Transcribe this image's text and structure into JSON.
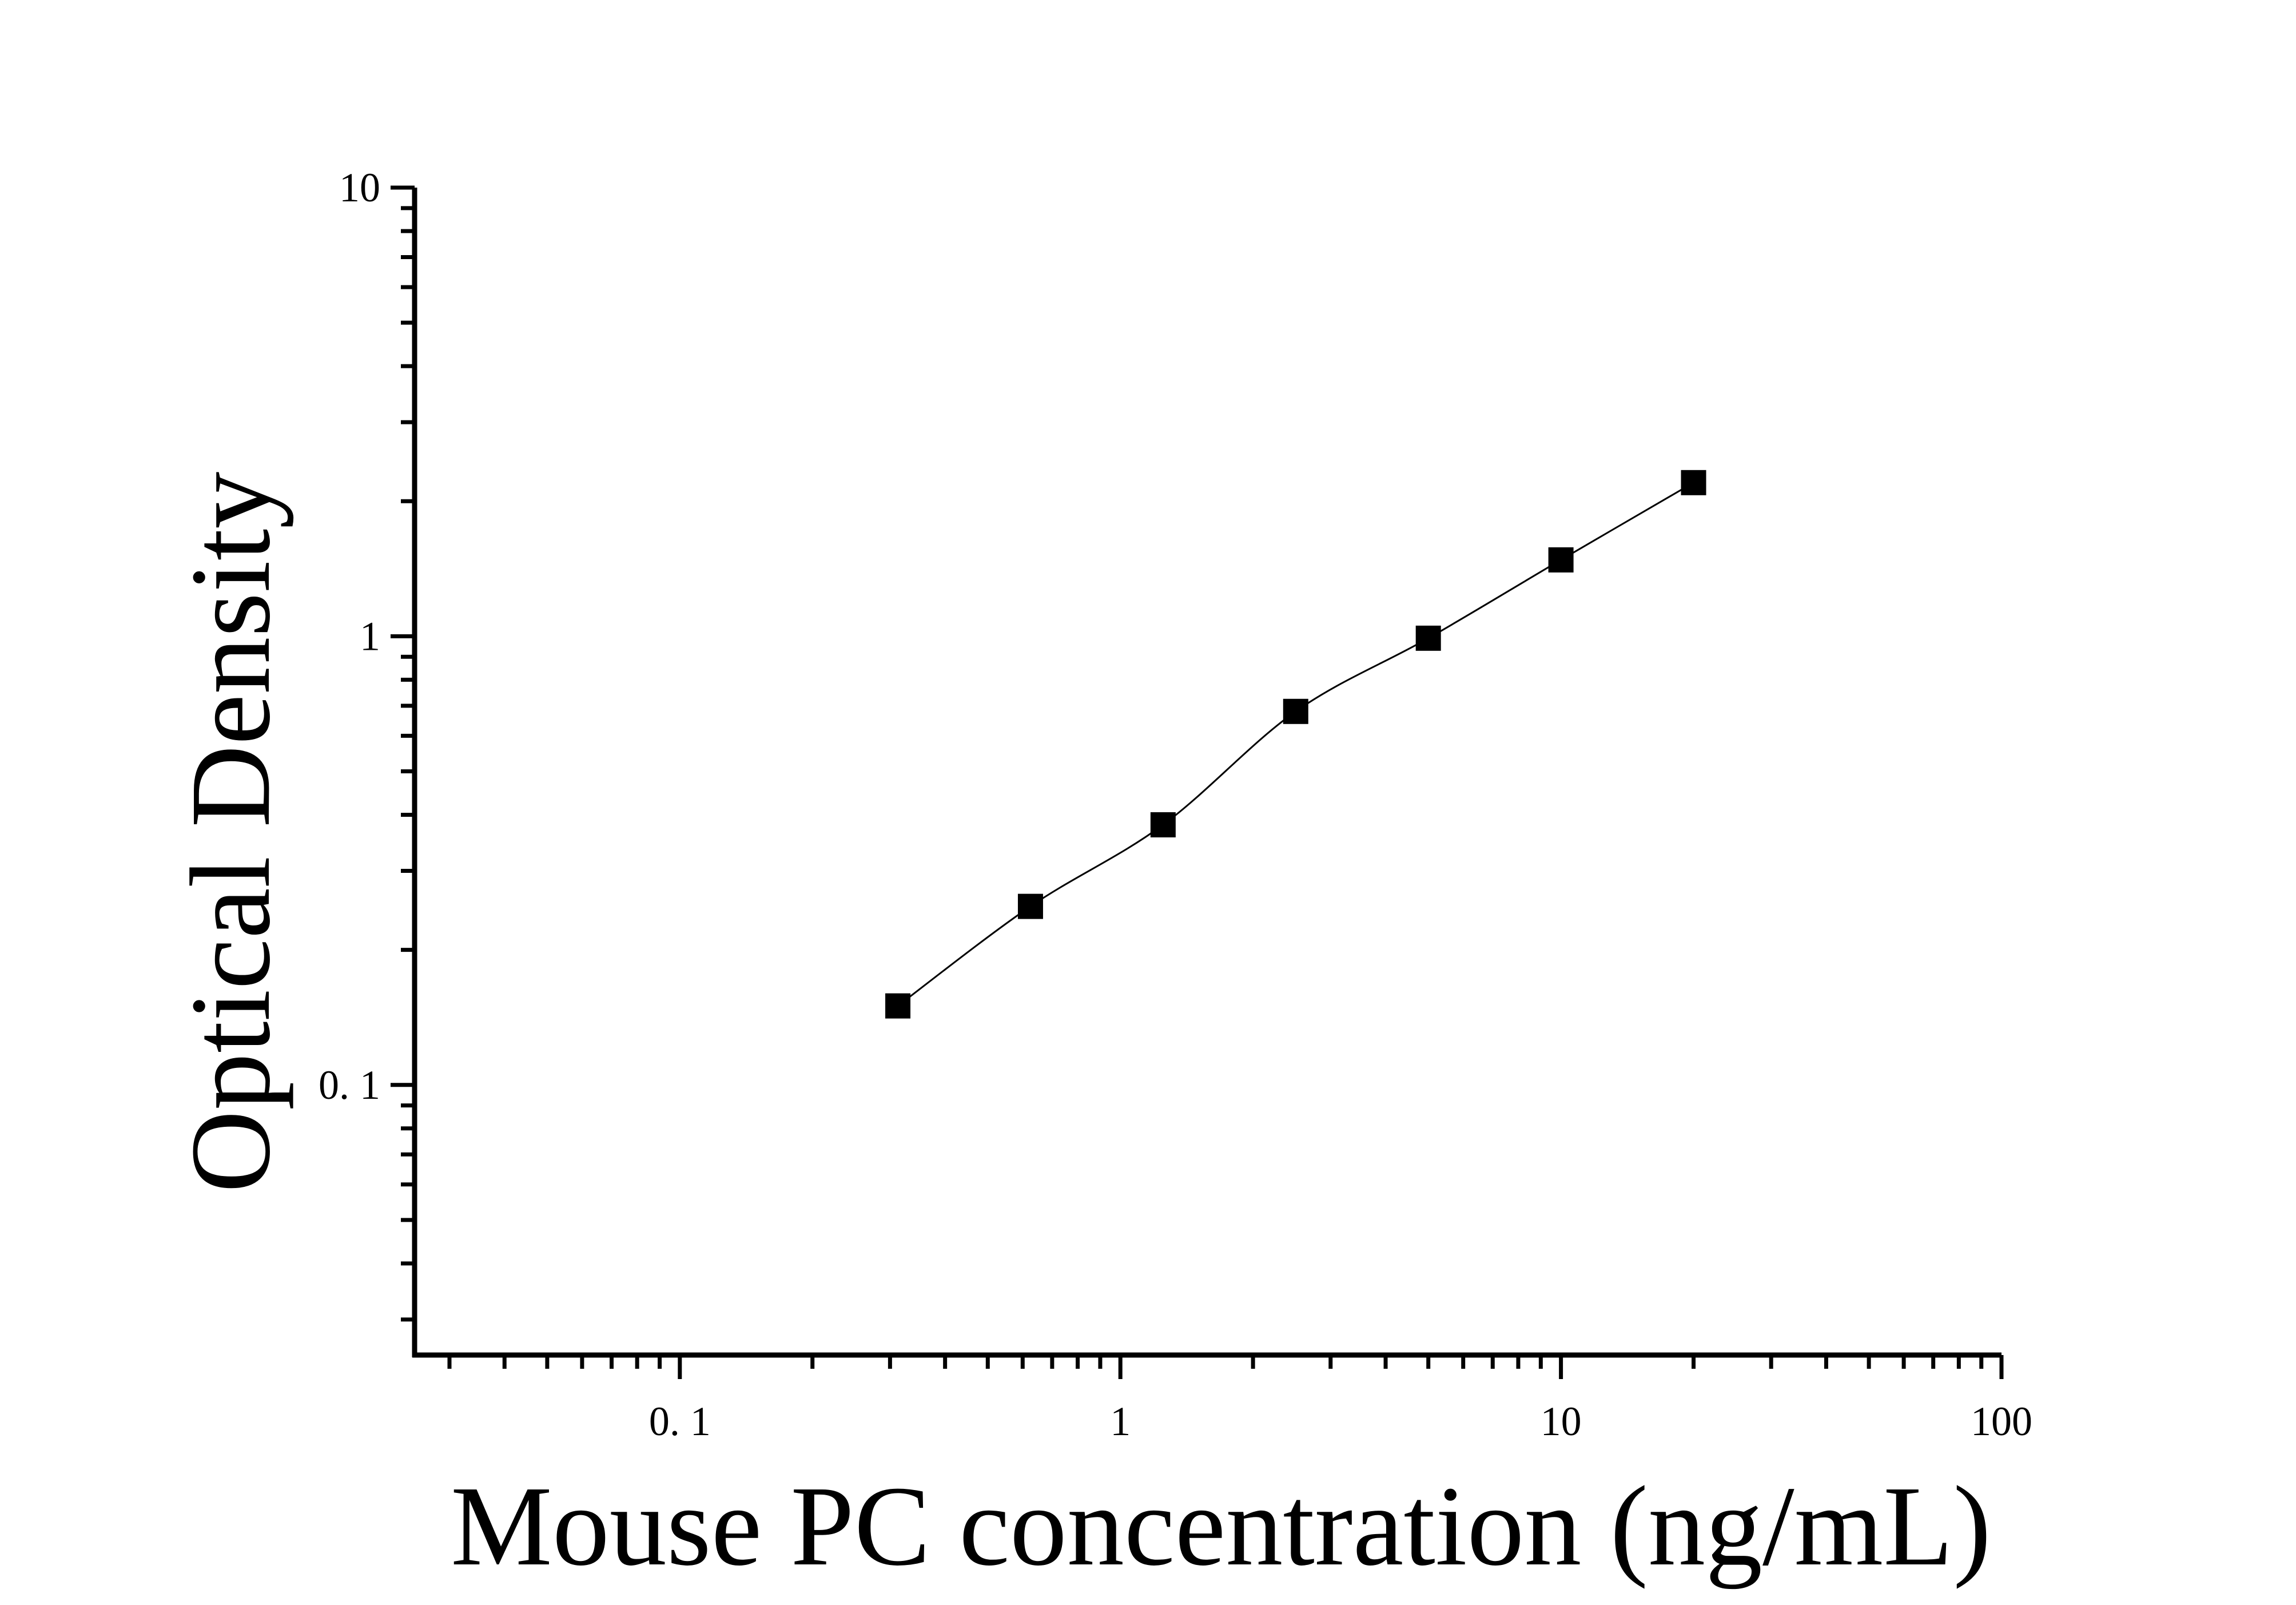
{
  "chart_data": {
    "type": "scatter",
    "xlabel": "Mouse PC concentration (ng/mL)",
    "ylabel": "Optical Density",
    "x_scale": "log",
    "y_scale": "log",
    "xlim": [
      0.025,
      100
    ],
    "ylim": [
      0.025,
      10
    ],
    "x_ticks": [
      {
        "value": 0.1,
        "label": "0. 1"
      },
      {
        "value": 1,
        "label": "1"
      },
      {
        "value": 10,
        "label": "10"
      },
      {
        "value": 100,
        "label": "100"
      }
    ],
    "y_ticks": [
      {
        "value": 0.1,
        "label": "0. 1"
      },
      {
        "value": 1,
        "label": "1"
      },
      {
        "value": 10,
        "label": "10"
      }
    ],
    "series": [
      {
        "points": [
          {
            "x": 0.3125,
            "y": 0.15
          },
          {
            "x": 0.625,
            "y": 0.25
          },
          {
            "x": 1.25,
            "y": 0.38
          },
          {
            "x": 2.5,
            "y": 0.68
          },
          {
            "x": 5,
            "y": 0.99
          },
          {
            "x": 10,
            "y": 1.48
          },
          {
            "x": 20,
            "y": 2.2
          }
        ],
        "fit_line": true
      }
    ],
    "grid": false,
    "marker": "square",
    "color": "#000000"
  }
}
